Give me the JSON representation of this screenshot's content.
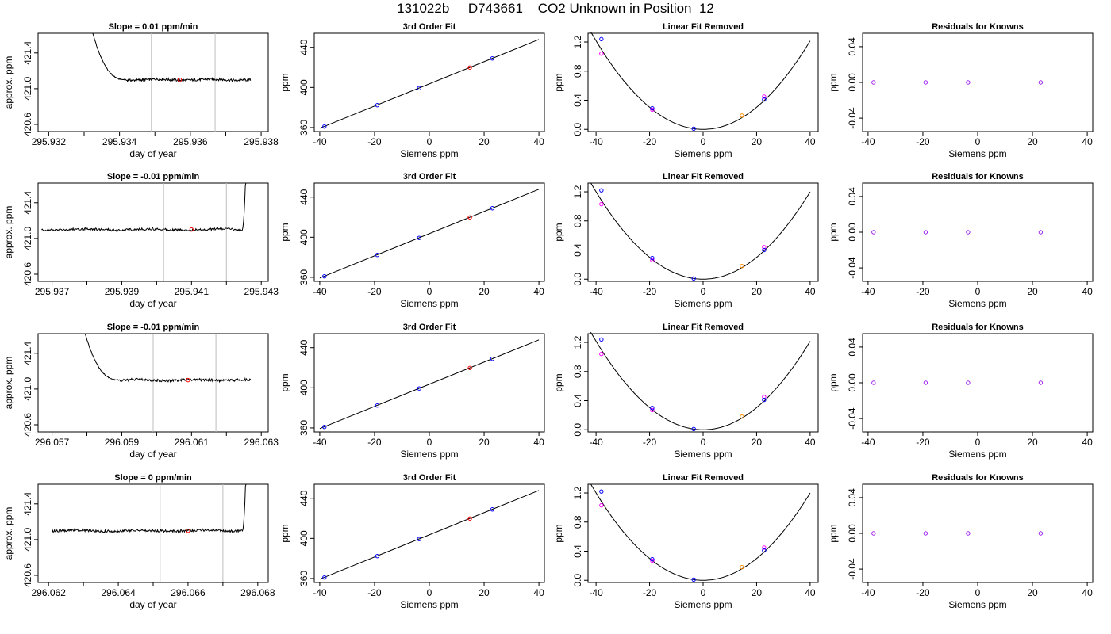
{
  "page": {
    "title": "131022b     D743661    CO2 Unknown in Position  12"
  },
  "colors": {
    "trace": "#000000",
    "vline": "#bebebe",
    "red": "#ff0000",
    "blue": "#0000ff",
    "orange": "#ff8c00",
    "magenta": "#ff00ff",
    "purple": "#a020f0"
  },
  "chart_data": [
    {
      "type": "line",
      "title": "Slope =  0.01  ppm/min",
      "xlabel": "day of year",
      "ylabel": "approx. ppm",
      "xlim": [
        295.9317,
        295.9382
      ],
      "ylim": [
        420.52,
        421.62
      ],
      "xticks": [
        "295.932",
        "295.934",
        "295.936",
        "295.938"
      ],
      "yticks": [
        "420.6",
        "421.0",
        "421.4"
      ],
      "x_start": 295.9332,
      "x_end": 295.9377,
      "start_high": true,
      "end_high": false,
      "level": 421.1,
      "vlines": [
        295.9349,
        295.9367
      ],
      "marker": {
        "x": 295.9357,
        "y": 421.1
      }
    },
    {
      "type": "scatter",
      "title": "3rd Order Fit",
      "xlabel": "Siemens ppm",
      "ylabel": "ppm",
      "xlim": [
        -42,
        42
      ],
      "ylim": [
        356,
        454
      ],
      "xticks": [
        "-40",
        "-20",
        "0",
        "20",
        "40"
      ],
      "yticks": [
        "360",
        "400",
        "440"
      ],
      "points": [
        [
          -38.3,
          361
        ],
        [
          -19,
          382.3
        ],
        [
          -3.7,
          399.3
        ],
        [
          14.8,
          419.8
        ],
        [
          23,
          428.9
        ]
      ],
      "fit_line": [
        [
          -40,
          359.3
        ],
        [
          40,
          447.8
        ]
      ]
    },
    {
      "type": "scatter",
      "title": "Linear Fit Removed",
      "xlabel": "Siemens ppm",
      "ylabel": "ppm",
      "xlim": [
        -43,
        43
      ],
      "ylim": [
        -0.03,
        1.32
      ],
      "xticks": [
        "-40",
        "-20",
        "0",
        "20",
        "40"
      ],
      "yticks": [
        "0.0",
        "0.4",
        "0.8",
        "1.2"
      ],
      "points_a": [
        [
          -38,
          1.24
        ],
        [
          -19,
          0.29
        ],
        [
          -3.5,
          0.01
        ],
        [
          14.5,
          0.19
        ],
        [
          22.8,
          0.41
        ]
      ],
      "points_b": [
        [
          -38,
          1.04
        ],
        [
          -19,
          0.27
        ],
        [
          22.8,
          0.45
        ]
      ],
      "curve": {
        "a": 0.00076,
        "x_from": -42,
        "x_to": 40
      }
    },
    {
      "type": "scatter",
      "title": "Residuals for Knowns",
      "xlabel": "Siemens ppm",
      "ylabel": "ppm",
      "xlim": [
        -42,
        42
      ],
      "ylim": [
        -0.055,
        0.055
      ],
      "xticks": [
        "-40",
        "-20",
        "0",
        "20",
        "40"
      ],
      "yticks": [
        "-0.04",
        "0.00",
        "0.04"
      ],
      "points": [
        [
          -38,
          0
        ],
        [
          -19,
          0
        ],
        [
          -3.5,
          0
        ],
        [
          23,
          0
        ]
      ]
    },
    {
      "type": "line",
      "title": "Slope =  -0.01  ppm/min",
      "xlabel": "day of year",
      "ylabel": "approx. ppm",
      "xlim": [
        295.9366,
        295.9432
      ],
      "ylim": [
        420.52,
        421.62
      ],
      "xticks": [
        "295.937",
        "295.939",
        "295.941",
        "295.943"
      ],
      "yticks": [
        "420.6",
        "421.0",
        "421.4"
      ],
      "x_start": 295.9367,
      "x_end": 295.9426,
      "start_high": false,
      "end_high": true,
      "level": 421.1,
      "vlines": [
        295.9402,
        295.942
      ],
      "marker": {
        "x": 295.941,
        "y": 421.1
      }
    },
    {
      "type": "scatter",
      "title": "3rd Order Fit",
      "xlabel": "Siemens ppm",
      "ylabel": "ppm",
      "xlim": [
        -42,
        42
      ],
      "ylim": [
        356,
        454
      ],
      "xticks": [
        "-40",
        "-20",
        "0",
        "20",
        "40"
      ],
      "yticks": [
        "360",
        "400",
        "440"
      ],
      "points": [
        [
          -38.3,
          361
        ],
        [
          -19,
          382.3
        ],
        [
          -3.7,
          399.3
        ],
        [
          14.8,
          419.8
        ],
        [
          23,
          428.9
        ]
      ],
      "fit_line": [
        [
          -40,
          359.3
        ],
        [
          40,
          447.8
        ]
      ]
    },
    {
      "type": "scatter",
      "title": "Linear Fit Removed",
      "xlabel": "Siemens ppm",
      "ylabel": "ppm",
      "xlim": [
        -43,
        43
      ],
      "ylim": [
        -0.03,
        1.32
      ],
      "xticks": [
        "-40",
        "-20",
        "0",
        "20",
        "40"
      ],
      "yticks": [
        "0.0",
        "0.4",
        "0.8",
        "1.2"
      ],
      "points_a": [
        [
          -38,
          1.22
        ],
        [
          -19,
          0.29
        ],
        [
          -3.5,
          0.01
        ],
        [
          14.5,
          0.18
        ],
        [
          22.8,
          0.4
        ]
      ],
      "points_b": [
        [
          -38,
          1.03
        ],
        [
          -19,
          0.26
        ],
        [
          22.8,
          0.44
        ]
      ],
      "curve": {
        "a": 0.00075,
        "x_from": -42,
        "x_to": 40
      }
    },
    {
      "type": "scatter",
      "title": "Residuals for Knowns",
      "xlabel": "Siemens ppm",
      "ylabel": "ppm",
      "xlim": [
        -42,
        42
      ],
      "ylim": [
        -0.055,
        0.055
      ],
      "xticks": [
        "-40",
        "-20",
        "0",
        "20",
        "40"
      ],
      "yticks": [
        "-0.04",
        "0.00",
        "0.04"
      ],
      "points": [
        [
          -38,
          0
        ],
        [
          -19,
          0
        ],
        [
          -3.5,
          0
        ],
        [
          23,
          0
        ]
      ]
    },
    {
      "type": "line",
      "title": "Slope =  -0.01  ppm/min",
      "xlabel": "day of year",
      "ylabel": "approx. ppm",
      "xlim": [
        296.0566,
        296.0632
      ],
      "ylim": [
        420.52,
        421.62
      ],
      "xticks": [
        "296.057",
        "296.059",
        "296.061",
        "296.063"
      ],
      "yticks": [
        "420.6",
        "421.0",
        "421.4"
      ],
      "x_start": 296.0579,
      "x_end": 296.0627,
      "start_high": true,
      "end_high": false,
      "level": 421.1,
      "vlines": [
        296.0599,
        296.0617
      ],
      "marker": {
        "x": 296.0609,
        "y": 421.1
      }
    },
    {
      "type": "scatter",
      "title": "3rd Order Fit",
      "xlabel": "Siemens ppm",
      "ylabel": "ppm",
      "xlim": [
        -42,
        42
      ],
      "ylim": [
        356,
        454
      ],
      "xticks": [
        "-40",
        "-20",
        "0",
        "20",
        "40"
      ],
      "yticks": [
        "360",
        "400",
        "440"
      ],
      "points": [
        [
          -38.3,
          361
        ],
        [
          -19,
          382.3
        ],
        [
          -3.7,
          399.3
        ],
        [
          14.8,
          419.8
        ],
        [
          23,
          428.9
        ]
      ],
      "fit_line": [
        [
          -40,
          359.3
        ],
        [
          40,
          447.8
        ]
      ]
    },
    {
      "type": "scatter",
      "title": "Linear Fit Removed",
      "xlabel": "Siemens ppm",
      "ylabel": "ppm",
      "xlim": [
        -43,
        43
      ],
      "ylim": [
        -0.03,
        1.32
      ],
      "xticks": [
        "-40",
        "-20",
        "0",
        "20",
        "40"
      ],
      "yticks": [
        "0.0",
        "0.4",
        "0.8",
        "1.2"
      ],
      "points_a": [
        [
          -38,
          1.24
        ],
        [
          -19,
          0.3
        ],
        [
          -3.5,
          0.01
        ],
        [
          14.5,
          0.18
        ],
        [
          22.8,
          0.41
        ]
      ],
      "points_b": [
        [
          -38,
          1.04
        ],
        [
          -19,
          0.27
        ],
        [
          22.8,
          0.45
        ]
      ],
      "curve": {
        "a": 0.00076,
        "x_from": -42,
        "x_to": 40
      }
    },
    {
      "type": "scatter",
      "title": "Residuals for Knowns",
      "xlabel": "Siemens ppm",
      "ylabel": "ppm",
      "xlim": [
        -42,
        42
      ],
      "ylim": [
        -0.055,
        0.055
      ],
      "xticks": [
        "-40",
        "-20",
        "0",
        "20",
        "40"
      ],
      "yticks": [
        "-0.04",
        "0.00",
        "0.04"
      ],
      "points": [
        [
          -38,
          0
        ],
        [
          -19,
          0
        ],
        [
          -3.5,
          0
        ],
        [
          23,
          0
        ]
      ]
    },
    {
      "type": "line",
      "title": "Slope =  0  ppm/min",
      "xlabel": "day of year",
      "ylabel": "approx. ppm",
      "xlim": [
        296.0617,
        296.0683
      ],
      "ylim": [
        420.52,
        421.62
      ],
      "xticks": [
        "296.062",
        "296.064",
        "296.066",
        "296.068"
      ],
      "yticks": [
        "420.6",
        "421.0",
        "421.4"
      ],
      "x_start": 296.0621,
      "x_end": 296.0677,
      "start_high": false,
      "end_high": true,
      "level": 421.1,
      "vlines": [
        296.0652,
        296.067
      ],
      "marker": {
        "x": 296.066,
        "y": 421.1
      }
    },
    {
      "type": "scatter",
      "title": "3rd Order Fit",
      "xlabel": "Siemens ppm",
      "ylabel": "ppm",
      "xlim": [
        -42,
        42
      ],
      "ylim": [
        356,
        454
      ],
      "xticks": [
        "-40",
        "-20",
        "0",
        "20",
        "40"
      ],
      "yticks": [
        "360",
        "400",
        "440"
      ],
      "points": [
        [
          -38.3,
          361
        ],
        [
          -19,
          382.3
        ],
        [
          -3.7,
          399.3
        ],
        [
          14.8,
          419.8
        ],
        [
          23,
          428.9
        ]
      ],
      "fit_line": [
        [
          -40,
          359.3
        ],
        [
          40,
          447.8
        ]
      ]
    },
    {
      "type": "scatter",
      "title": "Linear Fit Removed",
      "xlabel": "Siemens ppm",
      "ylabel": "ppm",
      "xlim": [
        -43,
        43
      ],
      "ylim": [
        -0.03,
        1.32
      ],
      "xticks": [
        "-40",
        "-20",
        "0",
        "20",
        "40"
      ],
      "yticks": [
        "0.0",
        "0.4",
        "0.8",
        "1.2"
      ],
      "points_a": [
        [
          -38,
          1.22
        ],
        [
          -19,
          0.29
        ],
        [
          -3.5,
          0.01
        ],
        [
          14.5,
          0.18
        ],
        [
          22.8,
          0.41
        ]
      ],
      "points_b": [
        [
          -38,
          1.03
        ],
        [
          -19,
          0.27
        ],
        [
          22.8,
          0.45
        ]
      ],
      "curve": {
        "a": 0.00075,
        "x_from": -42,
        "x_to": 40
      }
    },
    {
      "type": "scatter",
      "title": "Residuals for Knowns",
      "xlabel": "Siemens ppm",
      "ylabel": "ppm",
      "xlim": [
        -42,
        42
      ],
      "ylim": [
        -0.055,
        0.055
      ],
      "xticks": [
        "-40",
        "-20",
        "0",
        "20",
        "40"
      ],
      "yticks": [
        "-0.04",
        "0.00",
        "0.04"
      ],
      "points": [
        [
          -38,
          0
        ],
        [
          -19,
          0
        ],
        [
          -3.5,
          0
        ],
        [
          23,
          0
        ]
      ]
    }
  ]
}
